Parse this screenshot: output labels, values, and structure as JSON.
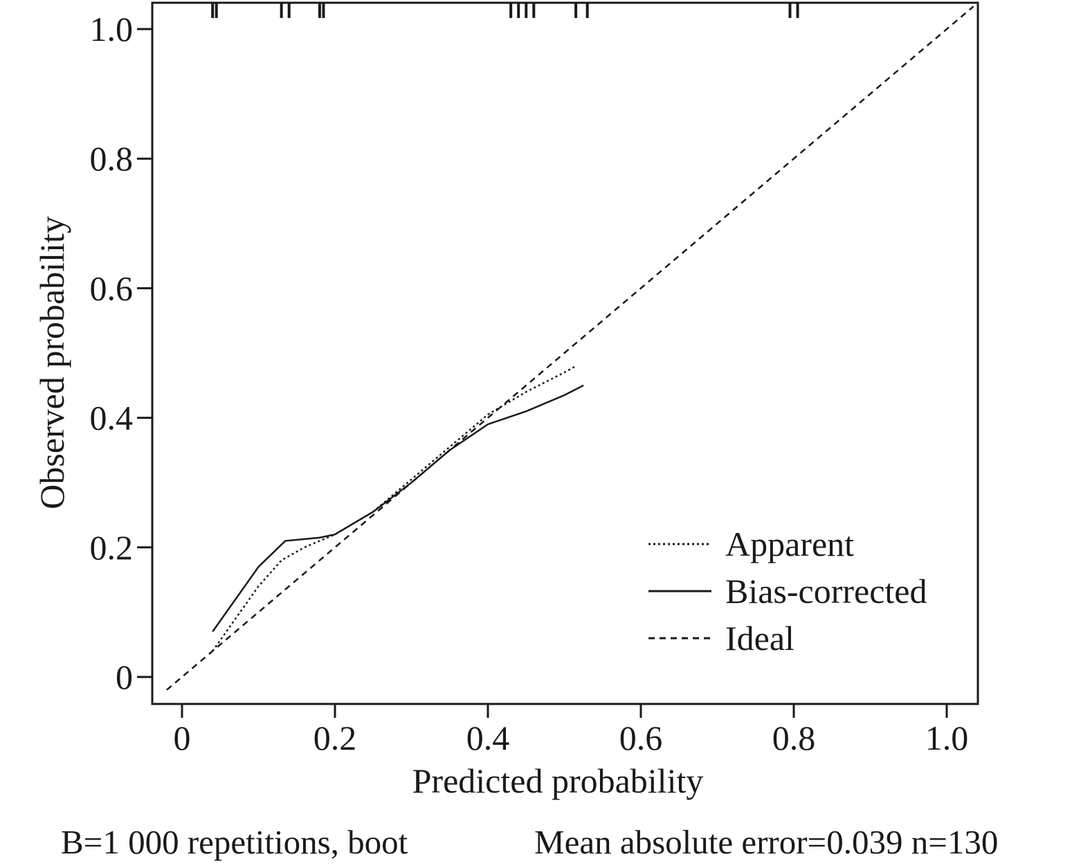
{
  "chart_data": {
    "type": "line",
    "xlabel": "Predicted probability",
    "ylabel": "Observed probability",
    "xlim": [
      -0.02,
      1.035
    ],
    "ylim": [
      -0.04,
      1.04
    ],
    "x_ticks": [
      0,
      0.2,
      0.4,
      0.6,
      0.8,
      1.0
    ],
    "x_tick_labels": [
      "0",
      "0.2",
      "0.4",
      "0.6",
      "0.8",
      "1.0"
    ],
    "y_ticks": [
      0,
      0.2,
      0.4,
      0.6,
      0.8,
      1.0
    ],
    "y_tick_labels": [
      "0",
      "0.2",
      "0.4",
      "0.6",
      "0.8",
      "1.0"
    ],
    "grid": false,
    "legend_position": "bottom-right",
    "series": [
      {
        "name": "Apparent",
        "style": "dotted",
        "x": [
          0.04,
          0.07,
          0.1,
          0.13,
          0.16,
          0.2,
          0.25,
          0.3,
          0.35,
          0.4,
          0.45,
          0.5,
          0.515
        ],
        "y": [
          0.04,
          0.09,
          0.14,
          0.18,
          0.2,
          0.22,
          0.255,
          0.305,
          0.355,
          0.405,
          0.44,
          0.47,
          0.48
        ]
      },
      {
        "name": "Bias-corrected",
        "style": "solid",
        "x": [
          0.04,
          0.07,
          0.1,
          0.135,
          0.18,
          0.2,
          0.25,
          0.3,
          0.35,
          0.4,
          0.45,
          0.5,
          0.525
        ],
        "y": [
          0.07,
          0.12,
          0.17,
          0.21,
          0.215,
          0.22,
          0.255,
          0.3,
          0.35,
          0.39,
          0.41,
          0.435,
          0.45
        ]
      },
      {
        "name": "Ideal",
        "style": "dashed",
        "x": [
          -0.02,
          1.035
        ],
        "y": [
          -0.02,
          1.035
        ]
      }
    ],
    "rug_marks": [
      0.04,
      0.045,
      0.13,
      0.14,
      0.18,
      0.185,
      0.43,
      0.44,
      0.45,
      0.46,
      0.515,
      0.53,
      0.795,
      0.805
    ],
    "footer": {
      "left": "B=1 000 repetitions, boot",
      "right": "Mean absolute error=0.039 n=130"
    }
  }
}
